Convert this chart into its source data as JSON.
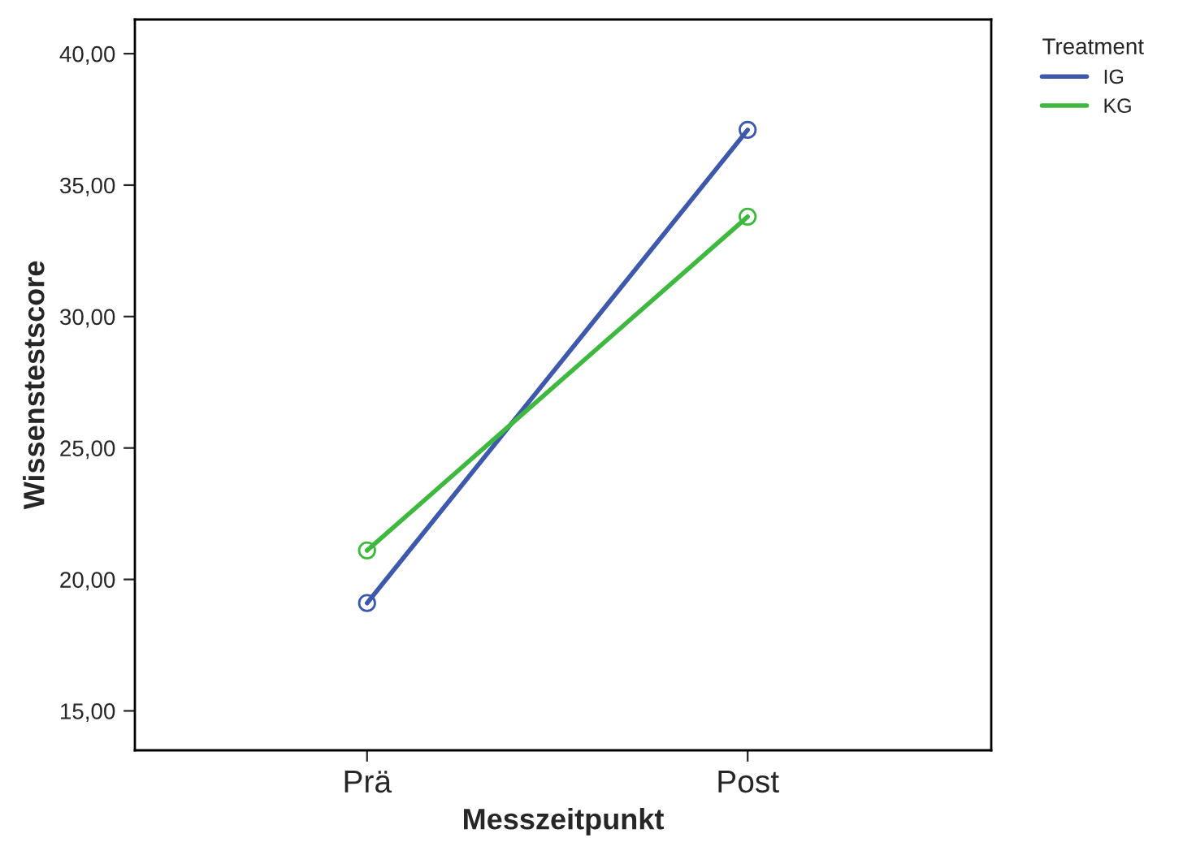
{
  "chart_data": {
    "type": "line",
    "xlabel": "Messzeitpunkt",
    "ylabel": "Wissenstestscore",
    "legend_title": "Treatment",
    "categories": [
      "Prä",
      "Post"
    ],
    "series": [
      {
        "name": "IG",
        "color": "#3e58ac",
        "values": [
          19.1,
          37.1
        ]
      },
      {
        "name": "KG",
        "color": "#3eb83e",
        "values": [
          21.1,
          33.8
        ]
      }
    ],
    "ylim": [
      13.5,
      41.3
    ],
    "yticks": [
      {
        "value": 15,
        "label": "15,00"
      },
      {
        "value": 20,
        "label": "20,00"
      },
      {
        "value": 25,
        "label": "25,00"
      },
      {
        "value": 30,
        "label": "30,00"
      },
      {
        "value": 35,
        "label": "35,00"
      },
      {
        "value": 40,
        "label": "40,00"
      }
    ],
    "marker": "circle",
    "line_style": "solid",
    "grid": false,
    "legend": "top right"
  }
}
